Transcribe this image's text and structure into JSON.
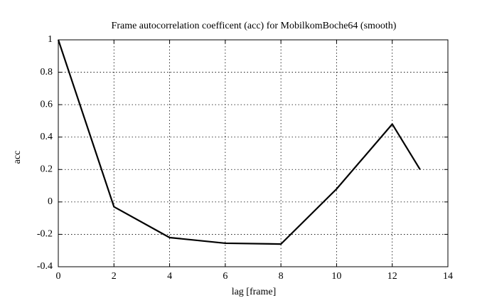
{
  "chart_data": {
    "type": "line",
    "title": "Frame autocorrelation coefficent (acc) for MobilkomBoche64 (smooth)",
    "x_label": "lag [frame]",
    "y_label": "acc",
    "x": [
      0,
      2,
      4,
      6,
      8,
      10,
      12,
      13
    ],
    "series": [
      {
        "color": "#000000",
        "values": [
          1,
          -0.03,
          -0.22,
          -0.255,
          -0.26,
          0.08,
          0.48,
          0.2
        ]
      }
    ],
    "xlim": [
      0,
      14
    ],
    "xticks": [
      0,
      2,
      4,
      6,
      8,
      10,
      12,
      14
    ],
    "ylim": [
      -0.4,
      1
    ],
    "yticks": [
      -0.4,
      -0.2,
      0,
      0.2,
      0.4,
      0.6,
      0.8,
      1
    ],
    "grid": true
  }
}
